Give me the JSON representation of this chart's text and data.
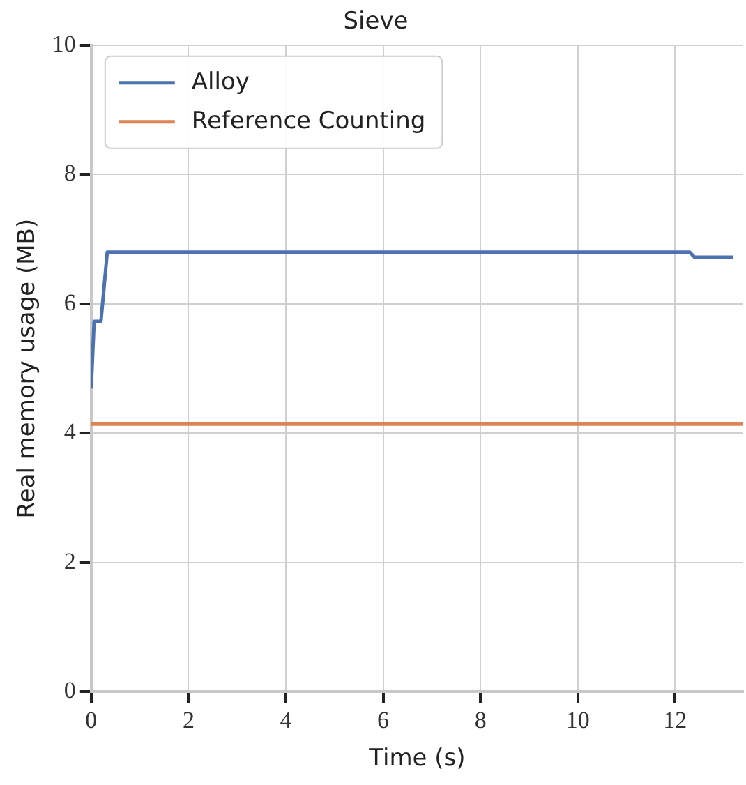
{
  "chart_data": {
    "type": "line",
    "title": "Sieve",
    "xlabel": "Time (s)",
    "ylabel": "Real memory usage (MB)",
    "xlim": [
      0,
      13.4
    ],
    "xticks": [
      0,
      2,
      4,
      6,
      8,
      10,
      12
    ],
    "ylim": [
      0,
      10
    ],
    "yticks": [
      0,
      2,
      4,
      6,
      8,
      10
    ],
    "grid": true,
    "legend": "top left",
    "marker": "none",
    "line_style": "solid",
    "series": [
      {
        "name": "Alloy",
        "color": "#4c72b0",
        "x": [
          0,
          0.06,
          0.2,
          0.33,
          12.3,
          12.4,
          13.2
        ],
        "values": [
          4.69,
          5.73,
          5.73,
          6.8,
          6.8,
          6.72,
          6.72
        ]
      },
      {
        "name": "Reference Counting",
        "color": "#dd8452",
        "x": [
          0,
          13.4
        ],
        "values": [
          4.14,
          4.14
        ]
      }
    ]
  }
}
